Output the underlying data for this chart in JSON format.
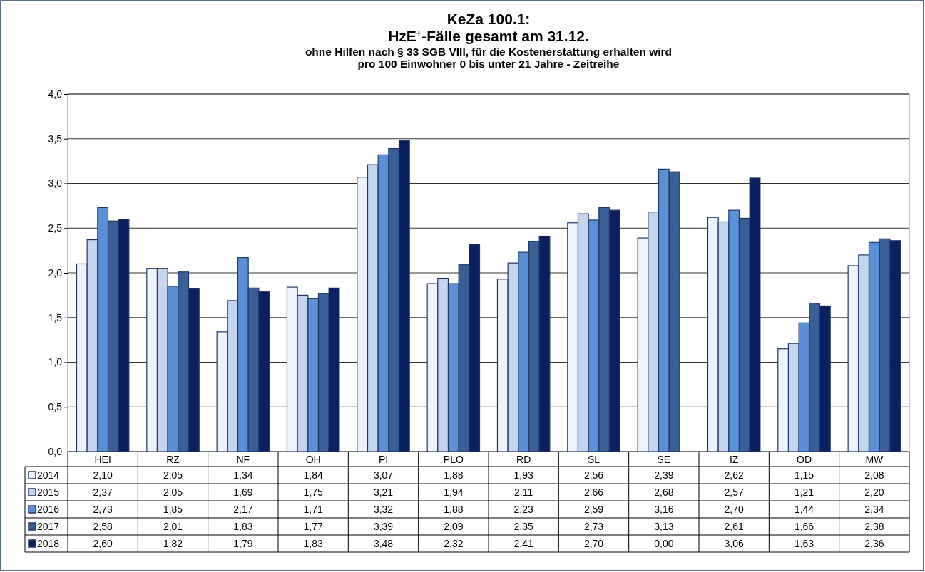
{
  "chart_data": {
    "type": "bar",
    "title": "KeZa 100.1:\nHzE$^{+}$-Fälle gesamt am 31.12.",
    "subtitle": "ohne Hilfen nach § 33 SGB VIII, für die Kostenerstattung erhalten wird\npro 100 Einwohner 0 bis unter 21 Jahre - Zeitreihe",
    "categories": [
      "HEI",
      "RZ",
      "NF",
      "OH",
      "PI",
      "PLÖ",
      "RD",
      "SL",
      "SE",
      "IZ",
      "OD",
      "MW"
    ],
    "series": [
      {
        "name": "2014",
        "color": "#eef2fb",
        "values": [
          2.1,
          2.05,
          1.34,
          1.84,
          3.07,
          1.88,
          1.93,
          2.56,
          2.39,
          2.62,
          1.15,
          2.08
        ],
        "value_labels": [
          "2,10",
          "2,05",
          "1,34",
          "1,84",
          "3,07",
          "1,88",
          "1,93",
          "2,56",
          "2,39",
          "2,62",
          "1,15",
          "2,08"
        ]
      },
      {
        "name": "2015",
        "color": "#c5d5ee",
        "values": [
          2.37,
          2.05,
          1.69,
          1.75,
          3.21,
          1.94,
          2.11,
          2.66,
          2.68,
          2.57,
          1.21,
          2.2
        ],
        "value_labels": [
          "2,37",
          "2,05",
          "1,69",
          "1,75",
          "3,21",
          "1,94",
          "2,11",
          "2,66",
          "2,68",
          "2,57",
          "1,21",
          "2,20"
        ]
      },
      {
        "name": "2016",
        "color": "#5b8fd6",
        "values": [
          2.73,
          1.85,
          2.17,
          1.71,
          3.32,
          1.88,
          2.23,
          2.59,
          3.16,
          2.7,
          1.44,
          2.34
        ],
        "value_labels": [
          "2,73",
          "1,85",
          "2,17",
          "1,71",
          "3,32",
          "1,88",
          "2,23",
          "2,59",
          "3,16",
          "2,70",
          "1,44",
          "2,34"
        ]
      },
      {
        "name": "2017",
        "color": "#3a5f96",
        "values": [
          2.58,
          2.01,
          1.83,
          1.77,
          3.39,
          2.09,
          2.35,
          2.73,
          3.13,
          2.61,
          1.66,
          2.38
        ],
        "value_labels": [
          "2,58",
          "2,01",
          "1,83",
          "1,77",
          "3,39",
          "2,09",
          "2,35",
          "2,73",
          "3,13",
          "2,61",
          "1,66",
          "2,38"
        ]
      },
      {
        "name": "2018",
        "color": "#0a2060",
        "values": [
          2.6,
          1.82,
          1.79,
          1.83,
          3.48,
          2.32,
          2.41,
          2.7,
          0.0,
          3.06,
          1.63,
          2.36
        ],
        "value_labels": [
          "2,60",
          "1,82",
          "1,79",
          "1,83",
          "3,48",
          "2,32",
          "2,41",
          "2,70",
          "0,00",
          "3,06",
          "1,63",
          "2,36"
        ]
      }
    ],
    "ylim": [
      0,
      4
    ],
    "yticks": [
      {
        "value": 0,
        "label": "0,0"
      },
      {
        "value": 0.5,
        "label": "0,5"
      },
      {
        "value": 1,
        "label": "1,0"
      },
      {
        "value": 1.5,
        "label": "1,5"
      },
      {
        "value": 2,
        "label": "2,0"
      },
      {
        "value": 2.5,
        "label": "2,5"
      },
      {
        "value": 3,
        "label": "3,0"
      },
      {
        "value": 3.5,
        "label": "3,5"
      },
      {
        "value": 4,
        "label": "4,0"
      }
    ],
    "grid": "y",
    "legend": "bottom left"
  }
}
